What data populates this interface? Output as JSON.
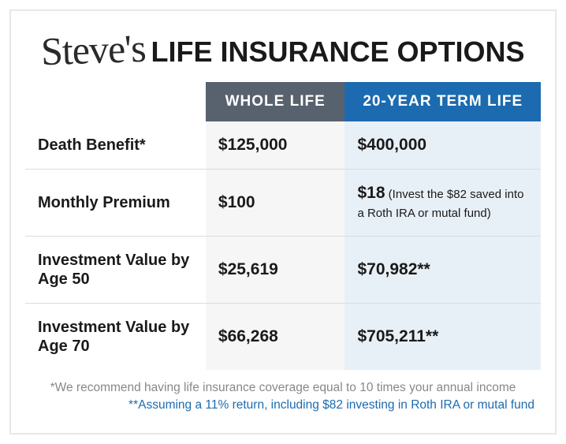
{
  "title": {
    "script": "Steve's",
    "main": "LIFE INSURANCE OPTIONS"
  },
  "table": {
    "headers": {
      "col_a": "WHOLE LIFE",
      "col_b": "20-YEAR TERM LIFE"
    },
    "header_colors": {
      "col_a_bg": "#58626e",
      "col_b_bg": "#1c6bb0"
    },
    "col_bg": {
      "a": "#f6f6f6",
      "b": "#e8f0f7"
    },
    "rows": [
      {
        "label": "Death Benefit*",
        "a": "$125,000",
        "b": "$400,000",
        "b_note": ""
      },
      {
        "label": "Monthly Premium",
        "a": "$100",
        "b": "$18",
        "b_note": " (Invest the $82 saved into a Roth IRA or mutal fund)"
      },
      {
        "label": "Investment Value by Age 50",
        "a": "$25,619",
        "b": "$70,982**",
        "b_note": ""
      },
      {
        "label": "Investment Value by Age 70",
        "a": "$66,268",
        "b": "$705,211**",
        "b_note": ""
      }
    ]
  },
  "footnotes": {
    "fn1": "*We recommend having life insurance coverage equal to 10 times your annual income",
    "fn2": "**Assuming a 11% return, including $82 investing in Roth IRA or mutal fund"
  },
  "typography": {
    "title_main_size": 36,
    "title_script_size": 50,
    "label_size": 20,
    "value_size": 21,
    "header_size": 19,
    "footnote_size": 15.5
  }
}
